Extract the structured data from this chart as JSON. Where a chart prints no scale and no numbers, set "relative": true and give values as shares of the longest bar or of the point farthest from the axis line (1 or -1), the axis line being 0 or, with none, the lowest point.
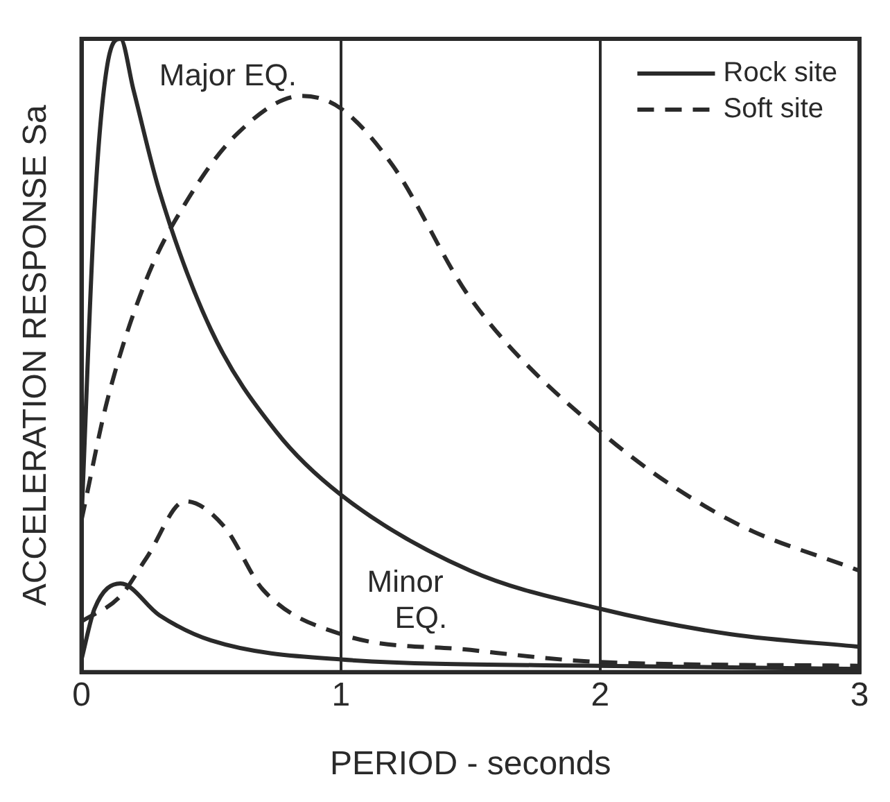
{
  "chart_data": {
    "type": "line",
    "relative": true,
    "xlabel": "PERIOD - seconds",
    "ylabel": "ACCELERATION RESPONSE Sa",
    "xlim": [
      0,
      3
    ],
    "xticks": [
      0,
      1,
      2,
      3
    ],
    "grid": "x",
    "legend": "top right",
    "marker": "none",
    "annotations": [
      "Major EQ.",
      "Minor EQ."
    ],
    "series": [
      {
        "name": "Rock site",
        "color": "#2a2a2a",
        "line_style": "solid",
        "x": [
          0,
          0.05,
          0.1,
          0.15,
          0.2,
          0.3,
          0.5,
          0.75,
          1,
          1.5,
          2,
          2.5,
          3
        ],
        "values": [
          0.24,
          0.73,
          0.96,
          1.0,
          0.92,
          0.76,
          0.54,
          0.38,
          0.28,
          0.16,
          0.1,
          0.06,
          0.04
        ]
      },
      {
        "name": "Soft site",
        "color": "#2a2a2a",
        "line_style": "dashed",
        "x": [
          0,
          0.1,
          0.25,
          0.4,
          0.6,
          0.85,
          1,
          1.2,
          1.5,
          2,
          2.5,
          3
        ],
        "values": [
          0.24,
          0.43,
          0.62,
          0.74,
          0.85,
          0.91,
          0.89,
          0.8,
          0.59,
          0.38,
          0.24,
          0.16
        ]
      },
      {
        "color": "#2a2a2a",
        "line_style": "solid",
        "x": [
          0,
          0.05,
          0.15,
          0.3,
          0.5,
          1,
          2,
          3
        ],
        "values": [
          0.02,
          0.1,
          0.14,
          0.09,
          0.05,
          0.02,
          0.01,
          0.005
        ]
      },
      {
        "color": "#2a2a2a",
        "line_style": "dashed",
        "x": [
          0,
          0.15,
          0.25,
          0.4,
          0.55,
          0.7,
          1,
          1.5,
          2,
          3
        ],
        "values": [
          0.08,
          0.12,
          0.18,
          0.27,
          0.23,
          0.13,
          0.06,
          0.035,
          0.016,
          0.01
        ]
      }
    ]
  }
}
